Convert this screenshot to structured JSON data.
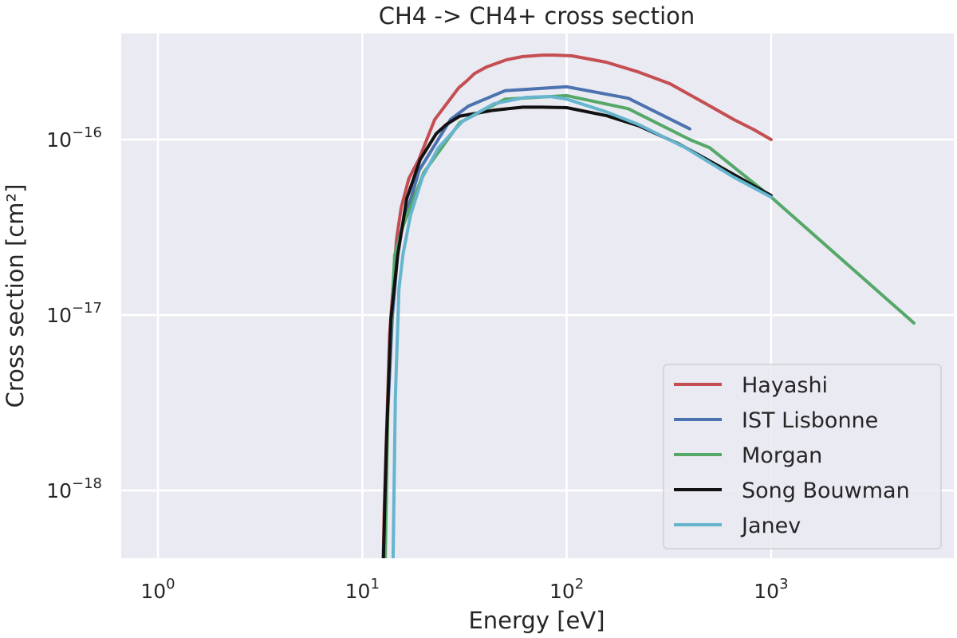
{
  "chart_data": {
    "type": "line",
    "title": "CH4 -> CH4+ cross section",
    "xlabel": "Energy [eV]",
    "ylabel": "Cross section [cm²]",
    "xscale": "log",
    "yscale": "log",
    "xlim": [
      0.66,
      7800
    ],
    "ylim": [
      4.1e-19,
      4e-16
    ],
    "grid": true,
    "legend_position": "bottom-right",
    "x_ticks": [
      {
        "value": 1,
        "base": "10",
        "exp": "0"
      },
      {
        "value": 10,
        "base": "10",
        "exp": "1"
      },
      {
        "value": 100,
        "base": "10",
        "exp": "2"
      },
      {
        "value": 1000,
        "base": "10",
        "exp": "3"
      }
    ],
    "y_ticks": [
      {
        "value": 1e-16,
        "base": "10",
        "exp": "−16"
      },
      {
        "value": 1e-17,
        "base": "10",
        "exp": "−17"
      },
      {
        "value": 1e-18,
        "base": "10",
        "exp": "−18"
      }
    ],
    "colors": {
      "background": "#eaeaf2",
      "grid": "#ffffff"
    },
    "series": [
      {
        "name": "Hayashi",
        "color": "#c44e52",
        "x": [
          12.6,
          12.8,
          13.6,
          14.7,
          15.5,
          16.9,
          18.9,
          22.6,
          29.6,
          32.3,
          35.4,
          40.4,
          50.9,
          60.7,
          76,
          87,
          106,
          156,
          224,
          320,
          458,
          657,
          823,
          1000
        ],
        "y": [
          3e-19,
          7.8e-19,
          7.7e-18,
          2.7e-17,
          4.1e-17,
          6e-17,
          7.7e-17,
          1.3e-16,
          1.97e-16,
          2.15e-16,
          2.38e-16,
          2.59e-16,
          2.85e-16,
          2.97e-16,
          3.03e-16,
          3.03e-16,
          3e-16,
          2.76e-16,
          2.43e-16,
          2.08e-16,
          1.65e-16,
          1.3e-16,
          1.14e-16,
          1e-16
        ]
      },
      {
        "name": "IST Lisbonne",
        "color": "#4c72b0",
        "x": [
          12.6,
          13.2,
          14.0,
          15.1,
          19,
          27,
          33,
          50,
          100,
          200,
          400
        ],
        "y": [
          3e-19,
          2.2e-18,
          9.5e-18,
          2.7e-17,
          6.7e-17,
          1.3e-16,
          1.55e-16,
          1.9e-16,
          2e-16,
          1.72e-16,
          1.15e-16
        ]
      },
      {
        "name": "Morgan",
        "color": "#55a868",
        "x": [
          12.9,
          13.4,
          14.4,
          15.8,
          20,
          30,
          50,
          100,
          200,
          400,
          500,
          1000,
          5000
        ],
        "y": [
          3e-19,
          4.1e-18,
          2.2e-17,
          3.2e-17,
          6.5e-17,
          1.25e-16,
          1.7e-16,
          1.78e-16,
          1.5e-16,
          1e-16,
          9e-17,
          4.7e-17,
          9e-18
        ]
      },
      {
        "name": "Song Bouwman",
        "color": "#111111",
        "x": [
          12.6,
          13.1,
          13.8,
          14.9,
          16.5,
          19.2,
          23,
          25.8,
          30,
          44,
          61,
          76,
          100,
          156,
          224,
          350,
          550,
          860,
          1000
        ],
        "y": [
          3e-19,
          1.8e-18,
          9.5e-18,
          2.2e-17,
          4.6e-17,
          7.7e-17,
          1.08e-16,
          1.22e-16,
          1.36e-16,
          1.47e-16,
          1.53e-16,
          1.53e-16,
          1.52e-16,
          1.37e-16,
          1.2e-16,
          9.5e-17,
          7.1e-17,
          5.3e-17,
          4.8e-17
        ]
      },
      {
        "name": "Janev",
        "color": "#64b5cd",
        "x": [
          14.1,
          14.5,
          15.1,
          15.8,
          17.2,
          19.7,
          23.6,
          30.9,
          44,
          63,
          83,
          100,
          156,
          224,
          380,
          657,
          1000
        ],
        "y": [
          3e-19,
          3.3e-18,
          1.4e-17,
          2.2e-17,
          3.7e-17,
          6.1e-17,
          9e-17,
          1.27e-16,
          1.6e-16,
          1.74e-16,
          1.76e-16,
          1.7e-16,
          1.44e-16,
          1.22e-16,
          9e-17,
          6.1e-17,
          4.7e-17
        ]
      }
    ]
  }
}
